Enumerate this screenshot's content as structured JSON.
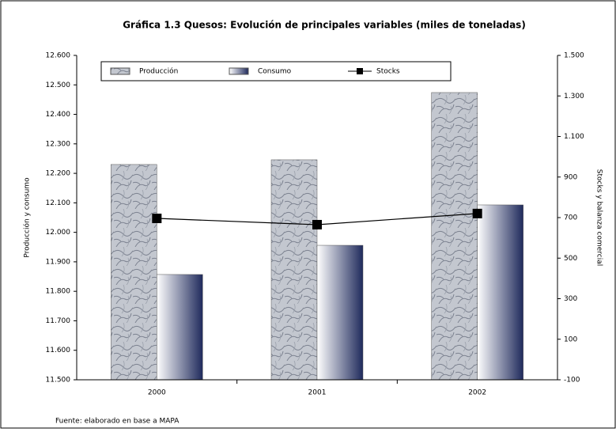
{
  "chart_data": {
    "type": "bar",
    "title": "Gráfica 1.3 Quesos: Evolución de principales variables (miles de toneladas)",
    "y_label": "Producción y consumo",
    "y2_label": "Stocks y balanza comercial",
    "source": "Fuente: elaborado en base a MAPA",
    "categories": [
      "2000",
      "2001",
      "2002"
    ],
    "series": [
      {
        "name": "Producción",
        "color": "#a9aeb8",
        "values": [
          12230,
          12246,
          12474
        ]
      },
      {
        "name": "Consumo",
        "color": "#1f2a5c",
        "values": [
          11857,
          11956,
          12093
        ]
      },
      {
        "name": "Stocks",
        "color": "#000000",
        "axis": "y2",
        "type": "line",
        "values": [
          696,
          665,
          720
        ]
      }
    ],
    "ylim": [
      11500,
      12600
    ],
    "yticks": [
      {
        "value": 11500,
        "label": "11.500"
      },
      {
        "value": 11600,
        "label": "11.600"
      },
      {
        "value": 11700,
        "label": "11.700"
      },
      {
        "value": 11800,
        "label": "11.800"
      },
      {
        "value": 11900,
        "label": "11.900"
      },
      {
        "value": 12000,
        "label": "12.000"
      },
      {
        "value": 12100,
        "label": "12.100"
      },
      {
        "value": 12200,
        "label": "12.200"
      },
      {
        "value": 12300,
        "label": "12.300"
      },
      {
        "value": 12400,
        "label": "12.400"
      },
      {
        "value": 12500,
        "label": "12.500"
      },
      {
        "value": 12600,
        "label": "12.600"
      }
    ],
    "y2lim": [
      -100,
      1500
    ],
    "y2ticks": [
      -100,
      100,
      300,
      500,
      700,
      900,
      {
        "value": 1100,
        "label": "1.100"
      },
      {
        "value": 1300,
        "label": "1.300"
      },
      {
        "value": 1500,
        "label": "1.500"
      }
    ],
    "legend": "top"
  }
}
